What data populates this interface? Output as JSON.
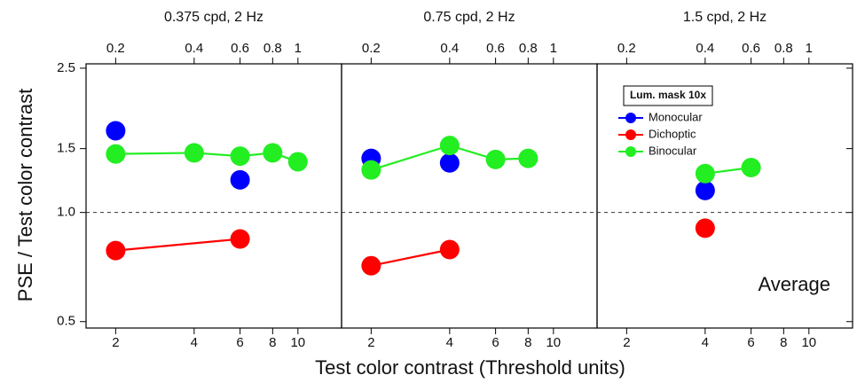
{
  "ylabel": "PSE / Test color contrast",
  "xlabel": "Test color contrast (Threshold units)",
  "ylim": [
    0.48,
    2.57
  ],
  "yticks": [
    0.5,
    {
      "value": 1,
      "label": "1.0"
    },
    1.5,
    2.5
  ],
  "y_log": true,
  "xlim": [
    1.54,
    14.7
  ],
  "xticks": [
    2,
    4,
    6,
    8,
    10
  ],
  "x_log": true,
  "x2lim": [
    0.154,
    1.47
  ],
  "x2ticks": [
    0.2,
    0.4,
    0.6,
    0.8,
    1
  ],
  "reference_line": 1,
  "chart_data": [
    {
      "type": "line",
      "title": "0.375 cpd, 2 Hz",
      "series": [
        {
          "color": "#0000ff",
          "connect": false,
          "x": [
            2,
            6
          ],
          "values": [
            1.68,
            1.23
          ]
        },
        {
          "color": "#ff0000",
          "connect": true,
          "x": [
            2,
            6
          ],
          "values": [
            0.785,
            0.845
          ]
        },
        {
          "color": "#22ee22",
          "connect": true,
          "x": [
            2,
            4,
            6,
            8,
            10
          ],
          "values": [
            1.45,
            1.46,
            1.43,
            1.46,
            1.38
          ]
        }
      ]
    },
    {
      "type": "line",
      "title": "0.75 cpd, 2 Hz",
      "series": [
        {
          "color": "#0000ff",
          "connect": false,
          "x": [
            2,
            4
          ],
          "values": [
            1.41,
            1.37
          ]
        },
        {
          "color": "#ff0000",
          "connect": true,
          "x": [
            2,
            4
          ],
          "values": [
            0.713,
            0.79
          ]
        },
        {
          "color": "#22ee22",
          "connect": true,
          "x": [
            2,
            4,
            6,
            8
          ],
          "values": [
            1.31,
            1.53,
            1.4,
            1.41
          ]
        }
      ]
    },
    {
      "type": "line",
      "title": "1.5 cpd, 2 Hz",
      "legend_title": "Lum. mask 10x",
      "annotation": "Average",
      "series": [
        {
          "name": "Monocular",
          "color": "#0000ff",
          "connect": false,
          "x": [
            4
          ],
          "values": [
            1.15
          ]
        },
        {
          "name": "Dichoptic",
          "color": "#ff0000",
          "connect": true,
          "x": [
            4
          ],
          "values": [
            0.905
          ]
        },
        {
          "name": "Binocular",
          "color": "#22ee22",
          "connect": true,
          "x": [
            4,
            6
          ],
          "values": [
            1.28,
            1.33
          ]
        }
      ]
    }
  ]
}
